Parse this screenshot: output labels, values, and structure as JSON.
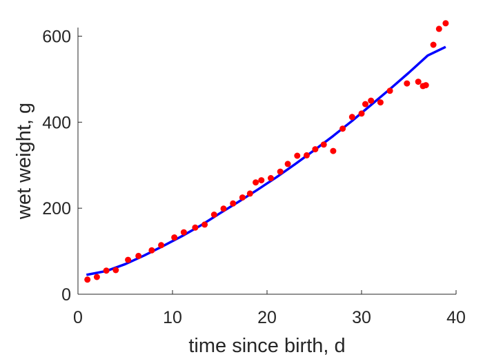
{
  "chart_data": {
    "type": "scatter",
    "xlabel": "time since birth, d",
    "ylabel": "wet weight, g",
    "xlim": [
      0,
      40
    ],
    "ylim": [
      0,
      620
    ],
    "xticks": [
      0,
      10,
      20,
      30,
      40
    ],
    "yticks": [
      0,
      200,
      400,
      600
    ],
    "grid": false,
    "colors": {
      "points": "#ff0000",
      "fit_line": "#0000ff",
      "axes": "#262626"
    },
    "series": [
      {
        "type": "scatter",
        "x": [
          1.0,
          2.0,
          3.0,
          4.0,
          5.3,
          6.4,
          7.8,
          8.8,
          10.2,
          11.2,
          12.4,
          13.4,
          14.4,
          15.4,
          16.4,
          17.4,
          18.2,
          18.8,
          19.4,
          20.4,
          21.4,
          22.2,
          23.2,
          24.2,
          25.1,
          26.0,
          27.0,
          28.0,
          29.0,
          30.0,
          30.4,
          31.0,
          32.0,
          33.0,
          34.8,
          36.0,
          36.5,
          36.8,
          37.6,
          38.2,
          38.9
        ],
        "y": [
          34,
          40,
          55,
          56,
          80,
          89,
          102,
          114,
          132,
          144,
          155,
          162,
          185,
          199,
          211,
          225,
          234,
          260,
          265,
          270,
          285,
          303,
          322,
          323,
          337,
          348,
          333,
          385,
          412,
          420,
          442,
          450,
          446,
          473,
          490,
          494,
          484,
          486,
          580,
          617,
          630
        ]
      },
      {
        "type": "line",
        "x": [
          0.9,
          3,
          5,
          7,
          9,
          11,
          13,
          15,
          17,
          19,
          21,
          23,
          25,
          27,
          29,
          31,
          33,
          35,
          37,
          38.9
        ],
        "y": [
          45,
          54,
          70,
          90,
          112,
          135,
          160,
          188,
          215,
          243,
          272,
          303,
          335,
          368,
          403,
          440,
          477,
          515,
          555,
          575
        ]
      }
    ]
  }
}
